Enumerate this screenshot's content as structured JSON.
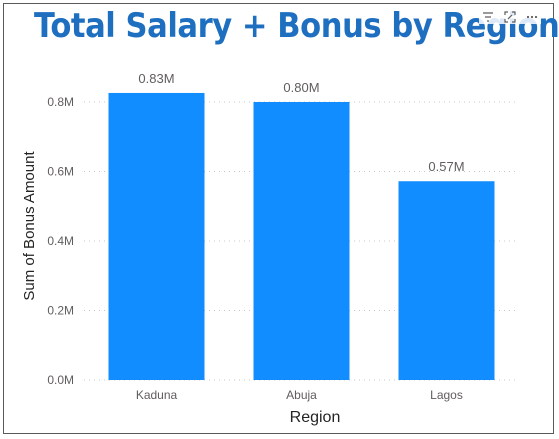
{
  "visual": {
    "title": "Total Salary + Bonus by Region",
    "header_icons": [
      "filter-icon",
      "focus-mode-icon",
      "more-options-icon"
    ]
  },
  "chart_data": {
    "type": "bar",
    "title": "Total Salary + Bonus by Region",
    "xlabel": "Region",
    "ylabel": "Sum of Bonus Amount",
    "categories": [
      "Kaduna",
      "Abuja",
      "Lagos"
    ],
    "values": [
      0.826,
      0.8,
      0.572
    ],
    "data_labels": [
      "0.83M",
      "0.80M",
      "0.57M"
    ],
    "y_ticks": [
      0,
      0.2,
      0.4,
      0.6,
      0.8
    ],
    "y_tick_labels": [
      "0.0M",
      "0.2M",
      "0.4M",
      "0.6M",
      "0.8M"
    ],
    "ylim": [
      0,
      0.8
    ],
    "grid": true,
    "bar_color": "#118dff"
  },
  "colors": {
    "title": "#1f6fc0",
    "bar": "#118dff",
    "axis_text": "#605e5c",
    "label_text": "#252423"
  }
}
